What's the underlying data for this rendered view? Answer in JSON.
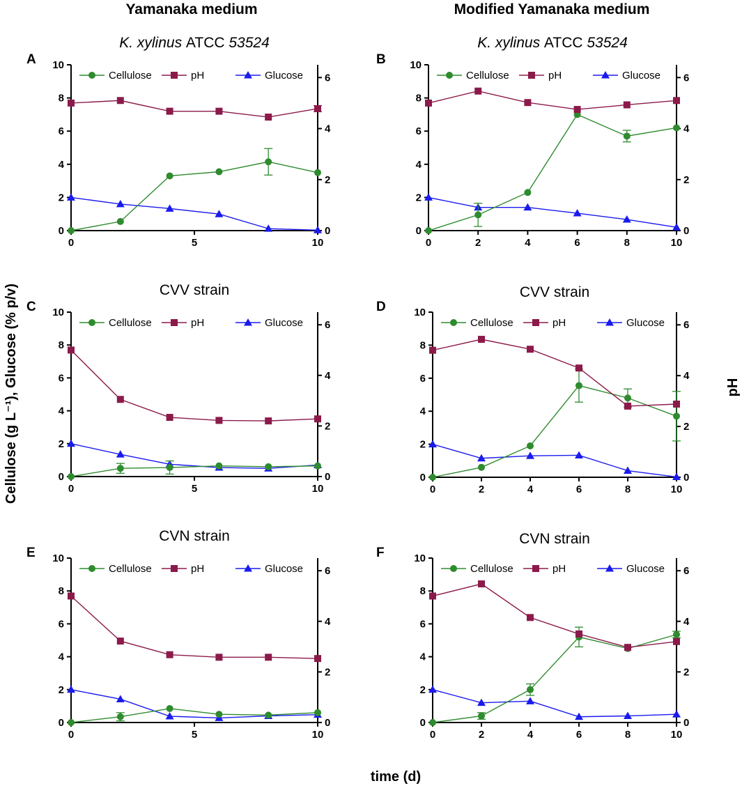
{
  "figure": {
    "column_titles": [
      "Yamanaka medium",
      "Modified Yamanaka medium"
    ],
    "y_left_label": "Cellulose (g L⁻¹), Glucose (% p/v)",
    "y_right_label": "pH",
    "x_label": "time (d)",
    "legend": {
      "cellulose": "Cellulose",
      "ph": "pH",
      "glucose": "Glucose"
    },
    "colors": {
      "cellulose": "#2e8b2e",
      "ph": "#8b1a4a",
      "glucose": "#1a1aee",
      "axis": "#000000"
    }
  },
  "chart_data": [
    {
      "type": "line",
      "letter": "A",
      "title": "K. xylinus ATCC 53524",
      "title_italic": true,
      "x": [
        0,
        2,
        4,
        6,
        8,
        10
      ],
      "xticks": [
        0,
        5,
        10
      ],
      "ylim": [
        0,
        10
      ],
      "yticks": [
        0,
        2,
        4,
        6,
        8,
        10
      ],
      "y2lim": [
        0,
        6.5
      ],
      "y2ticks": [
        0,
        2,
        4,
        6
      ],
      "series": [
        {
          "name": "Cellulose",
          "key": "cellulose",
          "axis": "left",
          "values": [
            0,
            0.55,
            3.3,
            3.55,
            4.15,
            3.5
          ],
          "errors": [
            0,
            0,
            0,
            0,
            0.8,
            0
          ]
        },
        {
          "name": "pH",
          "key": "ph",
          "axis": "right",
          "values": [
            5.0,
            5.1,
            4.68,
            4.68,
            4.45,
            4.78
          ],
          "errors": [
            0,
            0,
            0,
            0,
            0,
            0.12
          ]
        },
        {
          "name": "Glucose",
          "key": "glucose",
          "axis": "left",
          "values": [
            2.0,
            1.6,
            1.33,
            1.0,
            0.12,
            0.03
          ],
          "errors": [
            0,
            0,
            0,
            0,
            0,
            0
          ]
        }
      ]
    },
    {
      "type": "line",
      "letter": "B",
      "title": "K. xylinus ATCC 53524",
      "title_italic": true,
      "x": [
        0,
        2,
        4,
        6,
        8,
        10
      ],
      "xticks": [
        0,
        2,
        4,
        6,
        8,
        10
      ],
      "ylim": [
        0,
        10
      ],
      "yticks": [
        0,
        2,
        4,
        6,
        8,
        10
      ],
      "y2lim": [
        0,
        6.5
      ],
      "y2ticks": [
        0,
        2,
        4,
        6
      ],
      "series": [
        {
          "name": "Cellulose",
          "key": "cellulose",
          "axis": "left",
          "values": [
            0,
            0.95,
            2.3,
            7.0,
            5.7,
            6.2
          ],
          "errors": [
            0,
            0.7,
            0,
            0,
            0.35,
            0
          ]
        },
        {
          "name": "pH",
          "key": "ph",
          "axis": "right",
          "values": [
            5.0,
            5.47,
            5.02,
            4.75,
            4.93,
            5.1
          ],
          "errors": [
            0,
            0,
            0,
            0,
            0,
            0
          ]
        },
        {
          "name": "Glucose",
          "key": "glucose",
          "axis": "left",
          "values": [
            2.0,
            1.4,
            1.4,
            1.05,
            0.67,
            0.2
          ],
          "errors": [
            0,
            0,
            0,
            0,
            0,
            0
          ]
        }
      ]
    },
    {
      "type": "line",
      "letter": "C",
      "title": "CVV strain",
      "title_italic": false,
      "x": [
        0,
        2,
        4,
        6,
        8,
        10
      ],
      "xticks": [
        0,
        5,
        10
      ],
      "ylim": [
        0,
        10
      ],
      "yticks": [
        0,
        2,
        4,
        6,
        8,
        10
      ],
      "y2lim": [
        0,
        6.5
      ],
      "y2ticks": [
        0,
        2,
        4,
        6
      ],
      "series": [
        {
          "name": "Cellulose",
          "key": "cellulose",
          "axis": "left",
          "values": [
            0,
            0.5,
            0.55,
            0.65,
            0.6,
            0.65
          ],
          "errors": [
            0,
            0.3,
            0.4,
            0,
            0,
            0
          ]
        },
        {
          "name": "pH",
          "key": "ph",
          "axis": "right",
          "values": [
            5.0,
            3.05,
            2.34,
            2.22,
            2.2,
            2.28
          ],
          "errors": [
            0,
            0,
            0,
            0,
            0,
            0
          ]
        },
        {
          "name": "Glucose",
          "key": "glucose",
          "axis": "left",
          "values": [
            2.0,
            1.35,
            0.75,
            0.55,
            0.5,
            0.7
          ],
          "errors": [
            0,
            0,
            0,
            0,
            0,
            0
          ]
        }
      ]
    },
    {
      "type": "line",
      "letter": "D",
      "title": "CVV strain",
      "title_italic": false,
      "x": [
        0,
        2,
        4,
        6,
        8,
        10
      ],
      "xticks": [
        0,
        2,
        4,
        6,
        8,
        10
      ],
      "ylim": [
        0,
        10
      ],
      "yticks": [
        0,
        2,
        4,
        6,
        8,
        10
      ],
      "y2lim": [
        0,
        6.5
      ],
      "y2ticks": [
        0,
        2,
        4,
        6
      ],
      "series": [
        {
          "name": "Cellulose",
          "key": "cellulose",
          "axis": "left",
          "values": [
            0,
            0.6,
            1.9,
            5.55,
            4.8,
            3.7
          ],
          "errors": [
            0,
            0,
            0,
            1.0,
            0.55,
            1.5
          ]
        },
        {
          "name": "pH",
          "key": "ph",
          "axis": "right",
          "values": [
            5.0,
            5.43,
            5.04,
            4.3,
            2.8,
            2.88
          ],
          "errors": [
            0,
            0,
            0,
            0,
            0,
            0
          ]
        },
        {
          "name": "Glucose",
          "key": "glucose",
          "axis": "left",
          "values": [
            2.0,
            1.15,
            1.3,
            1.33,
            0.4,
            0.02
          ],
          "errors": [
            0,
            0,
            0,
            0,
            0,
            0
          ]
        }
      ]
    },
    {
      "type": "line",
      "letter": "E",
      "title": "CVN strain",
      "title_italic": false,
      "x": [
        0,
        2,
        4,
        6,
        8,
        10
      ],
      "xticks": [
        0,
        5,
        10
      ],
      "ylim": [
        0,
        10
      ],
      "yticks": [
        0,
        2,
        4,
        6,
        8,
        10
      ],
      "y2lim": [
        0,
        6.5
      ],
      "y2ticks": [
        0,
        2,
        4,
        6
      ],
      "series": [
        {
          "name": "Cellulose",
          "key": "cellulose",
          "axis": "left",
          "values": [
            0,
            0.35,
            0.85,
            0.5,
            0.45,
            0.6
          ],
          "errors": [
            0,
            0.25,
            0,
            0,
            0,
            0
          ]
        },
        {
          "name": "pH",
          "key": "ph",
          "axis": "right",
          "values": [
            5.0,
            3.22,
            2.68,
            2.58,
            2.58,
            2.53
          ],
          "errors": [
            0,
            0,
            0,
            0,
            0,
            0
          ]
        },
        {
          "name": "Glucose",
          "key": "glucose",
          "axis": "left",
          "values": [
            2.0,
            1.42,
            0.38,
            0.28,
            0.4,
            0.48
          ],
          "errors": [
            0,
            0,
            0,
            0,
            0,
            0
          ]
        }
      ]
    },
    {
      "type": "line",
      "letter": "F",
      "title": "CVN strain",
      "title_italic": false,
      "x": [
        0,
        2,
        4,
        6,
        8,
        10
      ],
      "xticks": [
        0,
        2,
        4,
        6,
        8,
        10
      ],
      "ylim": [
        0,
        10
      ],
      "yticks": [
        0,
        2,
        4,
        6,
        8,
        10
      ],
      "y2lim": [
        0,
        6.5
      ],
      "y2ticks": [
        0,
        2,
        4,
        6
      ],
      "series": [
        {
          "name": "Cellulose",
          "key": "cellulose",
          "axis": "left",
          "values": [
            0,
            0.4,
            2.0,
            5.2,
            4.5,
            5.35
          ],
          "errors": [
            0,
            0.2,
            0.35,
            0.6,
            0,
            0.2
          ]
        },
        {
          "name": "pH",
          "key": "ph",
          "axis": "right",
          "values": [
            5.0,
            5.48,
            4.15,
            3.5,
            2.97,
            3.2
          ],
          "errors": [
            0,
            0,
            0,
            0,
            0,
            0
          ]
        },
        {
          "name": "Glucose",
          "key": "glucose",
          "axis": "left",
          "values": [
            2.0,
            1.2,
            1.3,
            0.35,
            0.4,
            0.5
          ],
          "errors": [
            0,
            0,
            0,
            0,
            0,
            0
          ]
        }
      ]
    }
  ]
}
